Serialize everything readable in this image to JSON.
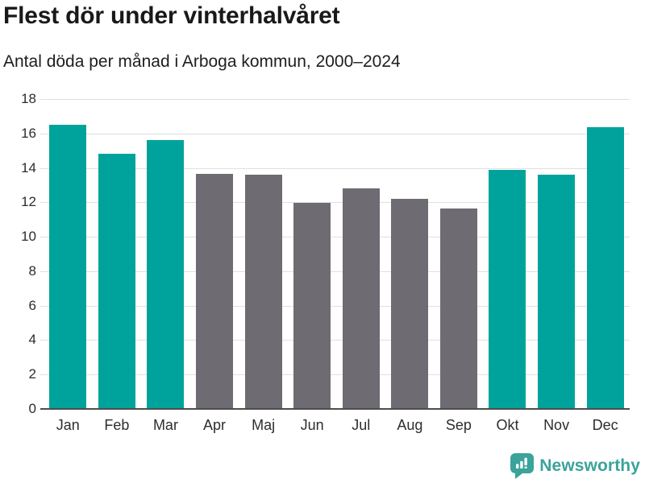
{
  "chart_data": {
    "type": "bar",
    "title": "Flest dör under vinterhalvåret",
    "subtitle": "Antal döda per månad i Arboga kommun, 2000–2024",
    "categories": [
      "Jan",
      "Feb",
      "Mar",
      "Apr",
      "Maj",
      "Jun",
      "Jul",
      "Aug",
      "Sep",
      "Okt",
      "Nov",
      "Dec"
    ],
    "values": [
      16.5,
      14.8,
      15.6,
      13.65,
      13.6,
      11.95,
      12.8,
      12.2,
      11.65,
      13.9,
      13.6,
      16.35
    ],
    "highlighted": [
      true,
      true,
      true,
      false,
      false,
      false,
      false,
      false,
      false,
      true,
      true,
      true
    ],
    "highlight_color": "#00a39b",
    "muted_color": "#6e6b72",
    "xlabel": "",
    "ylabel": "",
    "ylim": [
      0,
      18
    ],
    "yticks": [
      0,
      2,
      4,
      6,
      8,
      10,
      12,
      14,
      16,
      18
    ],
    "grid": true,
    "legend_position": "none"
  },
  "footer": {
    "brand": "Newsworthy",
    "brand_color": "#3aa39a",
    "logo_icon": "speech-bubble-bar-chart-exclamation-icon"
  },
  "colors": {
    "background": "#ffffff",
    "gridline": "#e0e0e0",
    "axis_line": "#4d4d4d",
    "title_text": "#191919",
    "tick_text": "#2d2d2d"
  }
}
